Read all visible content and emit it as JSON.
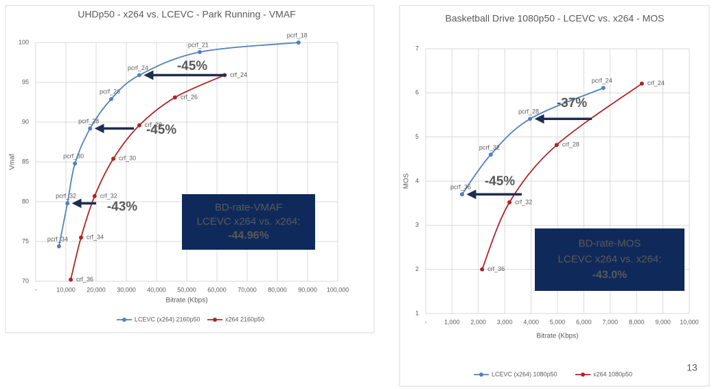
{
  "chart_data": [
    {
      "type": "line",
      "title": "UHDp50 - x264 vs. LCEVC - Park Running  - VMAF",
      "xlabel": "Bitrate (Kbps)",
      "ylabel": "Vmaf",
      "xlim": [
        0,
        100000
      ],
      "xticks": [
        {
          "value": 0,
          "label": "-"
        },
        {
          "value": 10000,
          "label": "10,000"
        },
        {
          "value": 20000,
          "label": "20,000"
        },
        {
          "value": 30000,
          "label": "30,000"
        },
        {
          "value": 40000,
          "label": "40,000"
        },
        {
          "value": 50000,
          "label": "50,000"
        },
        {
          "value": 60000,
          "label": "60,000"
        },
        {
          "value": 70000,
          "label": "70,000"
        },
        {
          "value": 80000,
          "label": "80,000"
        },
        {
          "value": 90000,
          "label": "90,000"
        },
        {
          "value": 100000,
          "label": "100,000"
        }
      ],
      "ylim": [
        70,
        100
      ],
      "yticks": [
        70,
        75,
        80,
        85,
        90,
        95,
        100
      ],
      "grid": true,
      "series": [
        {
          "name": "LCEVC (x264) 2160p50",
          "color": "#4f81bd",
          "x": [
            7700,
            10500,
            13000,
            18000,
            25000,
            34300,
            54300,
            87000
          ],
          "values": [
            74.4,
            79.8,
            84.8,
            89.2,
            92.9,
            95.9,
            98.8,
            100
          ],
          "point_labels": [
            "pcrf_34",
            "pcrf_32",
            "pcrf_30",
            "pcrf_28",
            "pcrf_26",
            "pcrf_24",
            "pcrf_21",
            "pcrf_18"
          ]
        },
        {
          "name": "x264 2160p50",
          "color": "#b22222",
          "x": [
            11600,
            15000,
            19500,
            25700,
            34300,
            46100,
            62500
          ],
          "values": [
            70.2,
            75.5,
            80.7,
            85.4,
            89.6,
            93.1,
            95.9
          ],
          "point_labels": [
            "crf_36",
            "crf_34",
            "crf_32",
            "crf_30",
            "crf_28",
            "crf_26",
            "crf_24"
          ]
        }
      ],
      "annotations": [
        "-45%",
        "-45%",
        "-43%"
      ],
      "box": [
        "BD-rate-VMAF",
        "LCEVC x264 vs. x264:",
        "-44.96%"
      ]
    },
    {
      "type": "line",
      "title": "Basketball Drive 1080p50 - LCEVC vs. x264 - MOS",
      "xlabel": "Bitrate (Kbps)",
      "ylabel": "MOS",
      "xlim": [
        0,
        10000
      ],
      "xticks": [
        {
          "value": 0,
          "label": "-"
        },
        {
          "value": 1000,
          "label": "1,000"
        },
        {
          "value": 2000,
          "label": "2,000"
        },
        {
          "value": 3000,
          "label": "3,000"
        },
        {
          "value": 4000,
          "label": "4,000"
        },
        {
          "value": 5000,
          "label": "5,000"
        },
        {
          "value": 6000,
          "label": "6,000"
        },
        {
          "value": 7000,
          "label": "7,000"
        },
        {
          "value": 8000,
          "label": "8,000"
        },
        {
          "value": 9000,
          "label": "9,000"
        },
        {
          "value": 10000,
          "label": "10,000"
        }
      ],
      "ylim": [
        1,
        7
      ],
      "yticks": [
        1,
        2,
        3,
        4,
        5,
        6,
        7
      ],
      "grid": true,
      "series": [
        {
          "name": "LCEVC (x264) 1080p50",
          "color": "#4f81bd",
          "x": [
            1380,
            2470,
            3960,
            6740
          ],
          "values": [
            3.7,
            4.6,
            5.41,
            6.11
          ],
          "point_labels": [
            "pcrf_36",
            "pcrf_32",
            "pcrf_28",
            "pcrf_24"
          ]
        },
        {
          "name": "x264 1080p50",
          "color": "#b22222",
          "x": [
            2140,
            3180,
            4970,
            8200
          ],
          "values": [
            2.0,
            3.52,
            4.82,
            6.21
          ],
          "point_labels": [
            "crf_36",
            "crf_32",
            "crf_28",
            "crf_24"
          ]
        }
      ],
      "annotations": [
        "-37%",
        "-45%"
      ],
      "box": [
        "BD-rate-MOS",
        "LCEVC x264 vs. x264:",
        "-43.0%"
      ]
    }
  ],
  "page_number": "13"
}
